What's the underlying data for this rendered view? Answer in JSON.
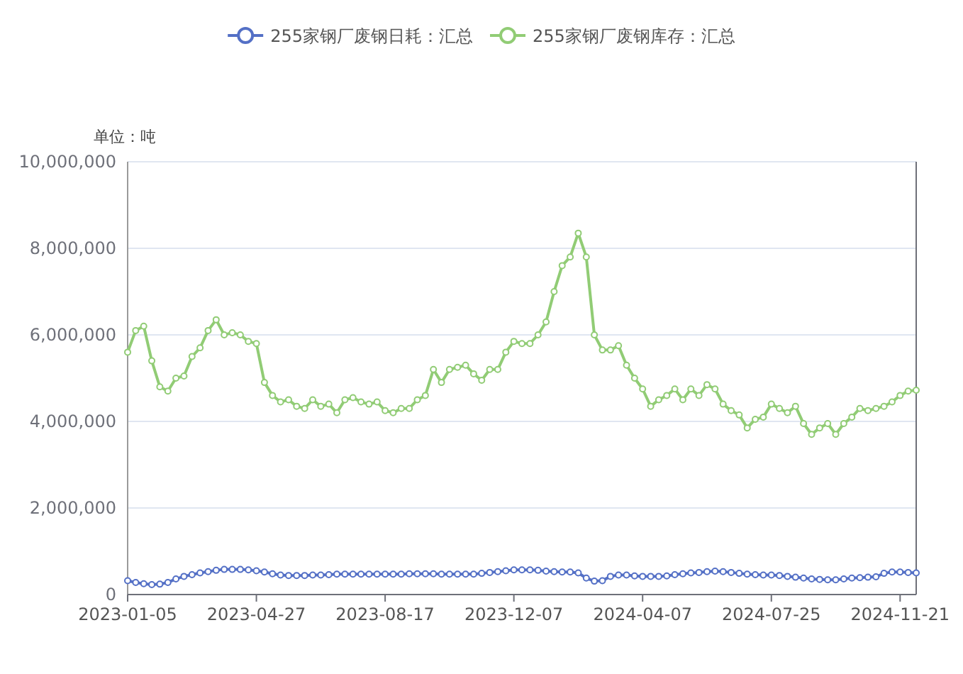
{
  "chart_data": {
    "type": "line",
    "ylabel": "单位：吨",
    "categories": [
      "2023-01-05",
      null,
      null,
      null,
      null,
      null,
      null,
      null,
      null,
      null,
      null,
      null,
      null,
      null,
      null,
      null,
      "2023-04-27",
      null,
      null,
      null,
      null,
      null,
      null,
      null,
      null,
      null,
      null,
      null,
      null,
      null,
      null,
      null,
      "2023-08-17",
      null,
      null,
      null,
      null,
      null,
      null,
      null,
      null,
      null,
      null,
      null,
      null,
      null,
      null,
      null,
      "2023-12-07",
      null,
      null,
      null,
      null,
      null,
      null,
      null,
      null,
      null,
      null,
      null,
      null,
      null,
      null,
      null,
      "2024-04-07",
      null,
      null,
      null,
      null,
      null,
      null,
      null,
      null,
      null,
      null,
      null,
      null,
      null,
      null,
      null,
      "2024-07-25",
      null,
      null,
      null,
      null,
      null,
      null,
      null,
      null,
      null,
      null,
      null,
      null,
      null,
      null,
      null,
      "2024-11-21",
      null,
      null
    ],
    "series": [
      {
        "name": "255家钢厂废钢日耗：汇总",
        "color": "#5470c6",
        "values": [
          320000,
          280000,
          250000,
          230000,
          240000,
          280000,
          360000,
          420000,
          460000,
          500000,
          530000,
          560000,
          580000,
          580000,
          580000,
          570000,
          550000,
          520000,
          480000,
          450000,
          440000,
          440000,
          440000,
          450000,
          450000,
          460000,
          470000,
          470000,
          470000,
          470000,
          470000,
          470000,
          470000,
          470000,
          470000,
          480000,
          480000,
          480000,
          480000,
          470000,
          470000,
          470000,
          470000,
          470000,
          490000,
          510000,
          530000,
          550000,
          570000,
          570000,
          570000,
          560000,
          540000,
          530000,
          520000,
          520000,
          500000,
          380000,
          310000,
          320000,
          420000,
          450000,
          450000,
          430000,
          420000,
          420000,
          420000,
          430000,
          460000,
          480000,
          500000,
          510000,
          530000,
          540000,
          530000,
          510000,
          490000,
          470000,
          460000,
          450000,
          450000,
          440000,
          420000,
          400000,
          380000,
          360000,
          350000,
          340000,
          340000,
          360000,
          380000,
          390000,
          400000,
          410000,
          490000,
          520000,
          520000,
          510000,
          500000
        ]
      },
      {
        "name": "255家钢厂废钢库存：汇总",
        "color": "#91cc75",
        "values": [
          5600000,
          6100000,
          6200000,
          5400000,
          4800000,
          4700000,
          5000000,
          5050000,
          5500000,
          5700000,
          6100000,
          6350000,
          6000000,
          6050000,
          6000000,
          5850000,
          5800000,
          4900000,
          4600000,
          4450000,
          4500000,
          4350000,
          4300000,
          4500000,
          4350000,
          4400000,
          4200000,
          4500000,
          4550000,
          4450000,
          4400000,
          4450000,
          4250000,
          4200000,
          4300000,
          4300000,
          4500000,
          4600000,
          5200000,
          4900000,
          5200000,
          5250000,
          5300000,
          5100000,
          4950000,
          5200000,
          5200000,
          5600000,
          5850000,
          5800000,
          5800000,
          6000000,
          6300000,
          7000000,
          7600000,
          7800000,
          8350000,
          7800000,
          6000000,
          5650000,
          5650000,
          5750000,
          5300000,
          5000000,
          4750000,
          4350000,
          4500000,
          4600000,
          4750000,
          4500000,
          4750000,
          4600000,
          4850000,
          4750000,
          4400000,
          4250000,
          4150000,
          3850000,
          4050000,
          4100000,
          4400000,
          4300000,
          4200000,
          4350000,
          3950000,
          3700000,
          3850000,
          3950000,
          3700000,
          3950000,
          4100000,
          4300000,
          4250000,
          4300000,
          4350000,
          4450000,
          4600000,
          4700000,
          4720000
        ]
      }
    ],
    "ylim": [
      0,
      10000000
    ],
    "yticks": [
      {
        "value": 0,
        "label": "0"
      },
      {
        "value": 2000000,
        "label": "2,000,000"
      },
      {
        "value": 4000000,
        "label": "4,000,000"
      },
      {
        "value": 6000000,
        "label": "6,000,000"
      },
      {
        "value": 8000000,
        "label": "8,000,000"
      },
      {
        "value": 10000000,
        "label": "10,000,000"
      }
    ],
    "grid": "y",
    "legend": "top",
    "marker": "circle",
    "line_style": "solid"
  }
}
